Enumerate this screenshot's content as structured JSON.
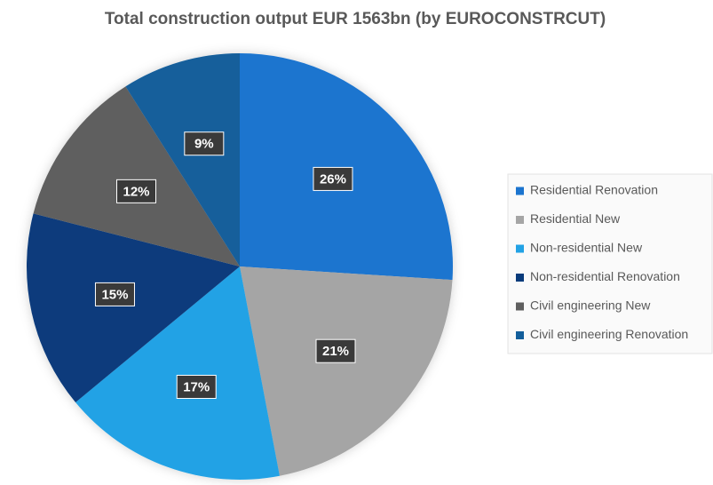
{
  "chart_data": {
    "type": "pie",
    "title": "Total construction output EUR 1563bn (by EUROCONSTRCUT)",
    "categories": [
      "Residential Renovation",
      "Residential New",
      "Non-residential New",
      "Non-residential Renovation",
      "Civil engineering New",
      "Civil engineering Renovation"
    ],
    "values": [
      26,
      21,
      17,
      15,
      12,
      9
    ],
    "value_labels": [
      "26%",
      "21%",
      "17%",
      "15%",
      "12%",
      "9%"
    ],
    "colors": [
      "#1b74cf",
      "#a5a5a5",
      "#22a2e5",
      "#083b7b",
      "#5f5f5f",
      "#135e9b"
    ],
    "legend": "right"
  }
}
